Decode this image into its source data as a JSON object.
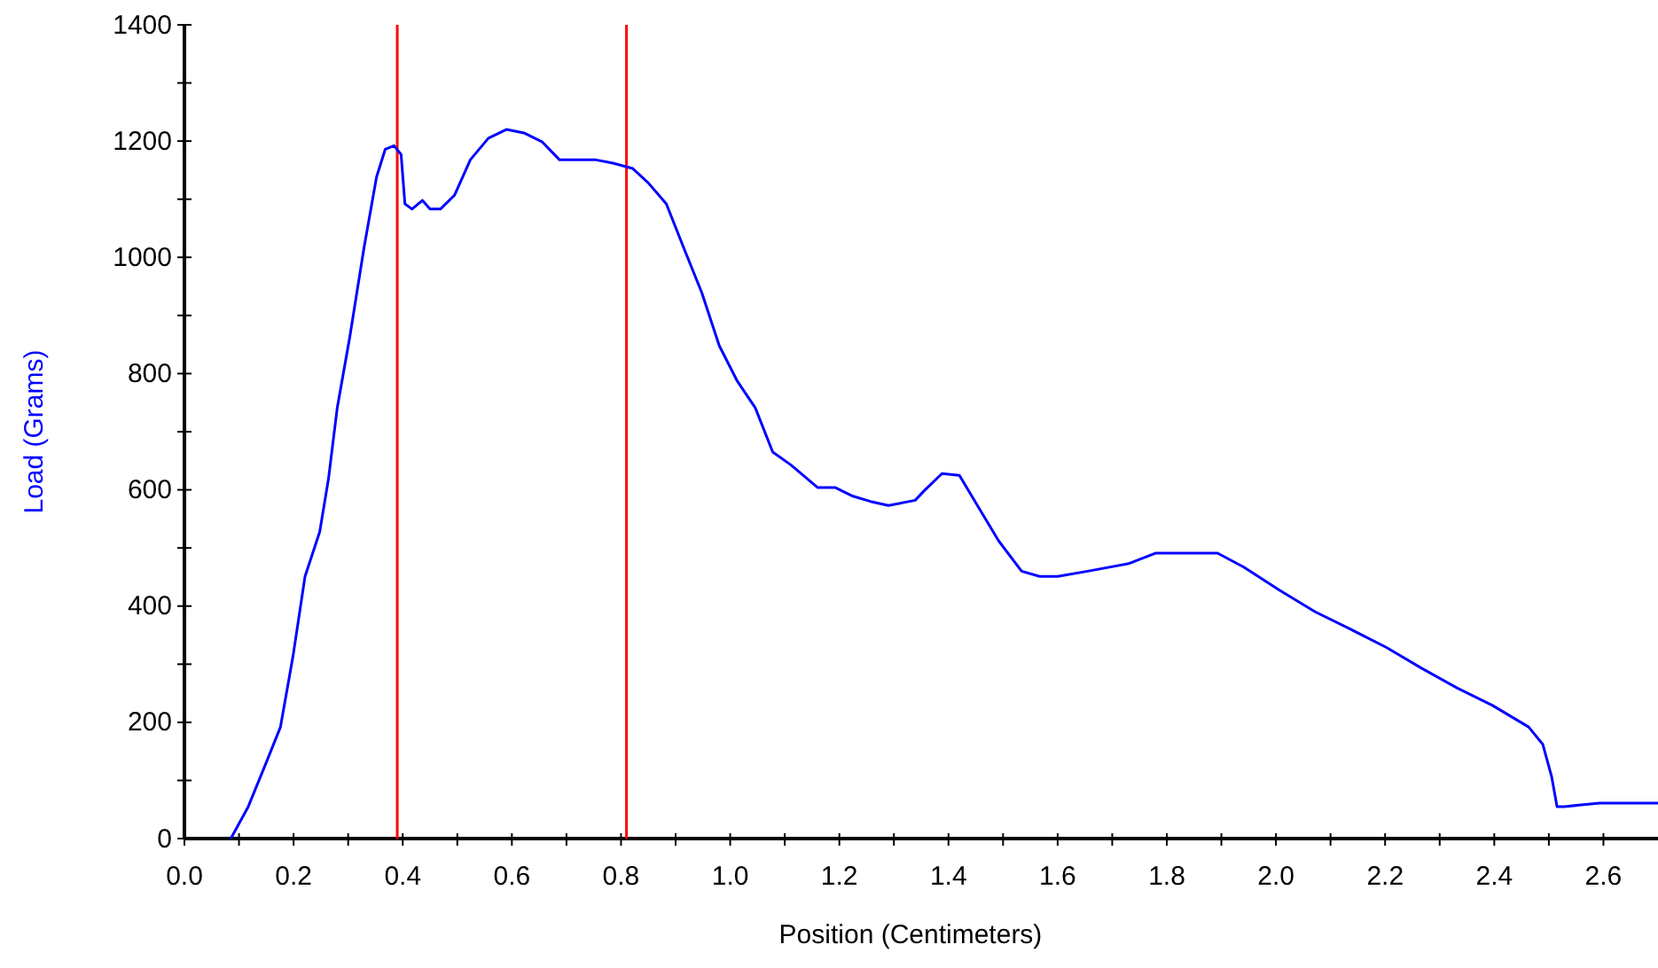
{
  "chart_data": {
    "type": "line",
    "xlabel": "Position (Centimeters)",
    "ylabel": "Load (Grams)",
    "xlim": [
      0,
      2.7
    ],
    "ylim": [
      0,
      1400
    ],
    "xticks": [
      {
        "value": 0,
        "label": "0.0"
      },
      {
        "value": 0.1,
        "label": null
      },
      {
        "value": 0.2,
        "label": "0.2"
      },
      {
        "value": 0.3,
        "label": null
      },
      {
        "value": 0.4,
        "label": "0.4"
      },
      {
        "value": 0.5,
        "label": null
      },
      {
        "value": 0.6,
        "label": "0.6"
      },
      {
        "value": 0.7,
        "label": null
      },
      {
        "value": 0.8,
        "label": "0.8"
      },
      {
        "value": 0.9,
        "label": null
      },
      {
        "value": 1,
        "label": "1.0"
      },
      {
        "value": 1.1,
        "label": null
      },
      {
        "value": 1.2,
        "label": "1.2"
      },
      {
        "value": 1.3,
        "label": null
      },
      {
        "value": 1.4,
        "label": "1.4"
      },
      {
        "value": 1.5,
        "label": null
      },
      {
        "value": 1.6,
        "label": "1.6"
      },
      {
        "value": 1.7,
        "label": null
      },
      {
        "value": 1.8,
        "label": "1.8"
      },
      {
        "value": 1.9,
        "label": null
      },
      {
        "value": 2,
        "label": "2.0"
      },
      {
        "value": 2.1,
        "label": null
      },
      {
        "value": 2.2,
        "label": "2.2"
      },
      {
        "value": 2.3,
        "label": null
      },
      {
        "value": 2.4,
        "label": "2.4"
      },
      {
        "value": 2.5,
        "label": null
      },
      {
        "value": 2.6,
        "label": "2.6"
      }
    ],
    "yticks": [
      0,
      {
        "value": 100,
        "label": null
      },
      200,
      {
        "value": 300,
        "label": null
      },
      400,
      {
        "value": 500,
        "label": null
      },
      600,
      {
        "value": 700,
        "label": null
      },
      800,
      {
        "value": 900,
        "label": null
      },
      1000,
      {
        "value": 1100,
        "label": null
      },
      1200,
      {
        "value": 1300,
        "label": null
      },
      1400
    ],
    "grid": false,
    "marker": "none",
    "line_style": "solid",
    "ref_lines": [
      {
        "axis": "x",
        "value": 0.39,
        "color": "#ff0000"
      },
      {
        "axis": "x",
        "value": 0.81,
        "color": "#ff0000"
      }
    ],
    "series": [
      {
        "color": "#0000ff",
        "x": [
          0.085,
          0.117,
          0.15,
          0.176,
          0.199,
          0.221,
          0.248,
          0.264,
          0.28,
          0.303,
          0.329,
          0.352,
          0.368,
          0.384,
          0.397,
          0.404,
          0.417,
          0.436,
          0.45,
          0.469,
          0.495,
          0.524,
          0.557,
          0.59,
          0.622,
          0.655,
          0.687,
          0.72,
          0.752,
          0.785,
          0.821,
          0.85,
          0.883,
          0.915,
          0.948,
          0.98,
          1.013,
          1.046,
          1.078,
          1.111,
          1.16,
          1.192,
          1.225,
          1.257,
          1.29,
          1.339,
          1.355,
          1.388,
          1.42,
          1.453,
          1.492,
          1.534,
          1.567,
          1.6,
          1.655,
          1.73,
          1.779,
          1.827,
          1.893,
          1.941,
          2.007,
          2.072,
          2.137,
          2.202,
          2.267,
          2.332,
          2.397,
          2.463,
          2.489,
          2.505,
          2.515,
          2.528,
          2.593,
          2.7
        ],
        "values": [
          0,
          55,
          131,
          192,
          314,
          451,
          528,
          619,
          741,
          863,
          1016,
          1138,
          1186,
          1192,
          1177,
          1092,
          1083,
          1098,
          1083,
          1083,
          1107,
          1168,
          1205,
          1220,
          1214,
          1199,
          1168,
          1168,
          1168,
          1162,
          1153,
          1128,
          1092,
          1016,
          939,
          848,
          787,
          741,
          665,
          643,
          604,
          604,
          589,
          580,
          573,
          582,
          598,
          628,
          625,
          573,
          512,
          460,
          451,
          451,
          460,
          473,
          491,
          491,
          491,
          467,
          427,
          390,
          360,
          329,
          293,
          259,
          229,
          192,
          162,
          107,
          55,
          55,
          61,
          61
        ]
      }
    ]
  }
}
